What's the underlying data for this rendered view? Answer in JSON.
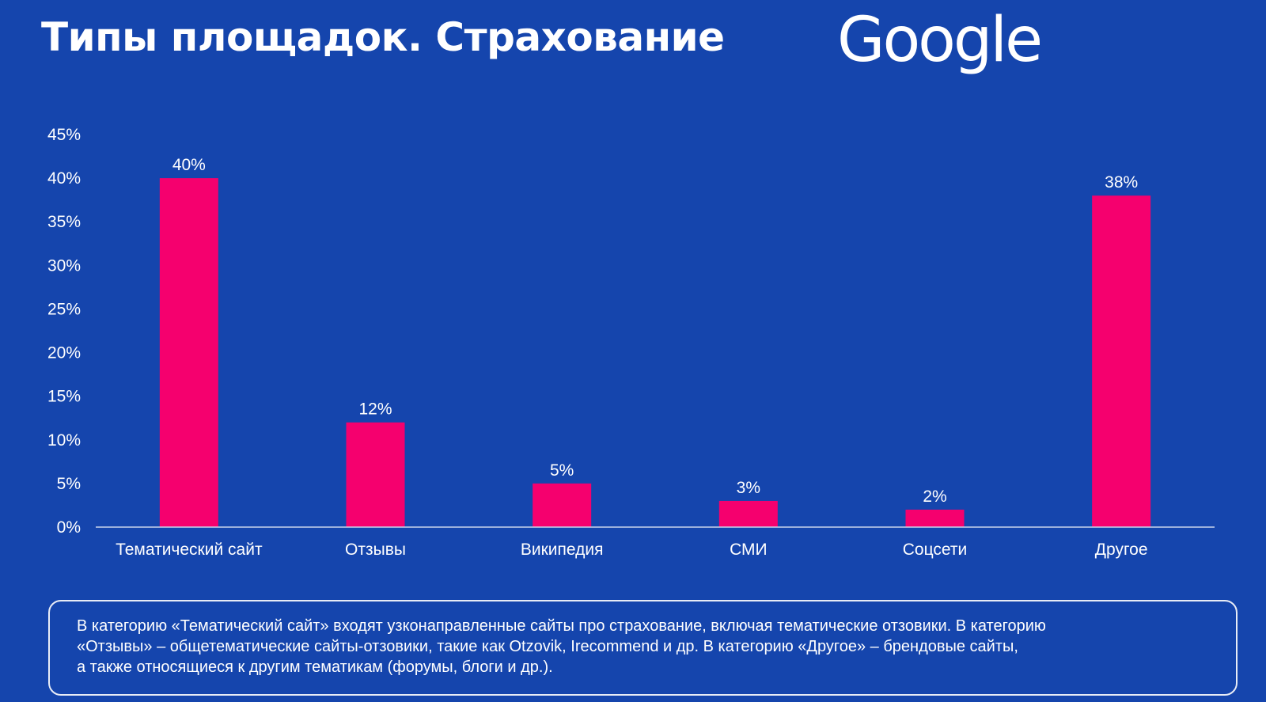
{
  "title": "Типы площадок. Страхование",
  "logo_text": "Google",
  "colors": {
    "background": "#1545ad",
    "bar": "#f5006e",
    "text": "#ffffff"
  },
  "chart_data": {
    "type": "bar",
    "title": "",
    "xlabel": "",
    "ylabel": "",
    "categories": [
      "Тематический сайт",
      "Отзывы",
      "Википедия",
      "СМИ",
      "Соцсети",
      "Другое"
    ],
    "values": [
      40,
      12,
      5,
      3,
      2,
      38
    ],
    "value_labels": [
      "40%",
      "12%",
      "5%",
      "3%",
      "2%",
      "38%"
    ],
    "ylim": [
      0,
      45
    ],
    "yticks": [
      "0%",
      "5%",
      "10%",
      "15%",
      "20%",
      "25%",
      "30%",
      "35%",
      "40%",
      "45%"
    ],
    "grid": false,
    "legend": "none"
  },
  "note": {
    "lines": [
      "В категорию «Тематический сайт» входят узконаправленные сайты про страхование, включая тематические отзовики. В категорию",
      "«Отзывы» – общетематические сайты-отзовики, такие как Otzovik, Irecommend и др. В категорию «Другое» – брендовые сайты,",
      "а также относящиеся к другим тематикам (форумы, блоги и др.)."
    ]
  }
}
